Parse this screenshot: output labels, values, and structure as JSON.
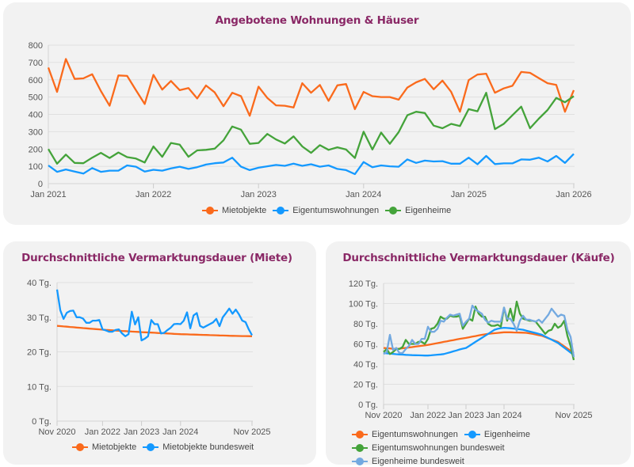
{
  "colors": {
    "title": "#8a2866",
    "orange": "#fa6a1c",
    "blue": "#1499ff",
    "green": "#44a33a",
    "lightblue": "#73a9e0"
  },
  "chart_data": [
    {
      "id": "top",
      "type": "line",
      "title": "Angebotene Wohnungen & Häuser",
      "ylim": [
        0,
        800
      ],
      "yticks": [
        0,
        100,
        200,
        300,
        400,
        500,
        600,
        700,
        800
      ],
      "ytick_labels": [
        "0",
        "100",
        "200",
        "300",
        "400",
        "500",
        "600",
        "700",
        "800"
      ],
      "xticks": [
        "2021-01",
        "2022-01",
        "2023-01",
        "2024-01",
        "2025-01",
        "2026-01"
      ],
      "xtick_labels": [
        "Jan 2021",
        "Jan 2022",
        "Jan 2023",
        "Jan 2024",
        "Jan 2025",
        "Jan 2026"
      ],
      "grid": true,
      "legend": "bottom",
      "x": [
        "2021-01",
        "2021-02",
        "2021-03",
        "2021-04",
        "2021-05",
        "2021-06",
        "2021-07",
        "2021-08",
        "2021-09",
        "2021-10",
        "2021-11",
        "2021-12",
        "2022-01",
        "2022-02",
        "2022-03",
        "2022-04",
        "2022-05",
        "2022-06",
        "2022-07",
        "2022-08",
        "2022-09",
        "2022-10",
        "2022-11",
        "2022-12",
        "2023-01",
        "2023-02",
        "2023-03",
        "2023-04",
        "2023-05",
        "2023-06",
        "2023-07",
        "2023-08",
        "2023-09",
        "2023-10",
        "2023-11",
        "2023-12",
        "2024-01",
        "2024-02",
        "2024-03",
        "2024-04",
        "2024-05",
        "2024-06",
        "2024-07",
        "2024-08",
        "2024-09",
        "2024-10",
        "2024-11",
        "2024-12",
        "2025-01",
        "2025-02",
        "2025-03",
        "2025-04",
        "2025-05",
        "2025-06",
        "2025-07",
        "2025-08",
        "2025-09",
        "2025-10",
        "2025-11",
        "2025-12",
        "2026-01"
      ],
      "series": [
        {
          "name": "Mietobjekte",
          "color": "#fa6a1c",
          "values": [
            670,
            530,
            720,
            605,
            608,
            632,
            535,
            450,
            625,
            622,
            540,
            460,
            628,
            543,
            593,
            540,
            552,
            492,
            567,
            527,
            447,
            525,
            505,
            392,
            560,
            495,
            452,
            450,
            440,
            580,
            525,
            570,
            478,
            568,
            575,
            430,
            530,
            505,
            500,
            500,
            485,
            555,
            585,
            605,
            545,
            595,
            530,
            415,
            598,
            630,
            635,
            525,
            550,
            565,
            645,
            640,
            610,
            580,
            570,
            415,
            540
          ]
        },
        {
          "name": "Eigentumswohnungen",
          "color": "#1499ff",
          "values": [
            105,
            68,
            82,
            70,
            58,
            90,
            68,
            75,
            75,
            105,
            98,
            70,
            80,
            75,
            88,
            98,
            85,
            95,
            110,
            118,
            122,
            150,
            98,
            78,
            92,
            100,
            108,
            103,
            115,
            103,
            112,
            98,
            105,
            85,
            78,
            55,
            125,
            95,
            105,
            100,
            98,
            140,
            120,
            133,
            128,
            130,
            115,
            115,
            150,
            112,
            160,
            113,
            117,
            117,
            140,
            138,
            150,
            128,
            160,
            120,
            172
          ]
        },
        {
          "name": "Eigenheime",
          "color": "#44a33a",
          "values": [
            200,
            115,
            168,
            120,
            118,
            150,
            178,
            148,
            180,
            153,
            145,
            122,
            215,
            155,
            235,
            225,
            155,
            192,
            195,
            202,
            250,
            330,
            312,
            230,
            235,
            287,
            255,
            232,
            273,
            215,
            178,
            222,
            195,
            210,
            197,
            148,
            300,
            197,
            295,
            230,
            297,
            395,
            415,
            408,
            335,
            320,
            345,
            333,
            430,
            418,
            525,
            315,
            345,
            395,
            445,
            320,
            375,
            425,
            495,
            470,
            505
          ]
        }
      ]
    },
    {
      "id": "left",
      "type": "line",
      "title": "Durchschnittliche Vermarktungsdauer (Miete)",
      "ylim": [
        0,
        40
      ],
      "yticks": [
        0,
        10,
        20,
        30,
        40
      ],
      "ytick_labels": [
        "0 Tg.",
        "10 Tg.",
        "20 Tg.",
        "30 Tg.",
        "40 Tg."
      ],
      "xticks": [
        "2020-11",
        "2022-01",
        "2023-01",
        "2024-01",
        "2025-11"
      ],
      "xtick_labels": [
        "Nov 2020",
        "Jan 2022",
        "Jan 2023",
        "Jan 2024",
        "Nov 2025"
      ],
      "grid": true,
      "legend": "bottom",
      "x": [
        "2020-11",
        "2020-12",
        "2021-01",
        "2021-02",
        "2021-03",
        "2021-04",
        "2021-05",
        "2021-06",
        "2021-07",
        "2021-08",
        "2021-09",
        "2021-10",
        "2021-11",
        "2021-12",
        "2022-01",
        "2022-02",
        "2022-03",
        "2022-04",
        "2022-05",
        "2022-06",
        "2022-07",
        "2022-08",
        "2022-09",
        "2022-10",
        "2022-11",
        "2022-12",
        "2023-01",
        "2023-02",
        "2023-03",
        "2023-04",
        "2023-05",
        "2023-06",
        "2023-07",
        "2023-08",
        "2023-09",
        "2023-10",
        "2023-11",
        "2023-12",
        "2024-01",
        "2024-02",
        "2024-03",
        "2024-04",
        "2024-05",
        "2024-06",
        "2024-07",
        "2024-08",
        "2024-09",
        "2024-10",
        "2024-11",
        "2024-12",
        "2025-01",
        "2025-02",
        "2025-03",
        "2025-04",
        "2025-05",
        "2025-06",
        "2025-07",
        "2025-08",
        "2025-09",
        "2025-10",
        "2025-11"
      ],
      "series": [
        {
          "name": "Mietobjekte",
          "color": "#fa6a1c",
          "values": [
            27.5,
            27.42,
            27.34,
            27.26,
            27.18,
            27.1,
            27.02,
            26.94,
            26.86,
            26.78,
            26.7,
            26.62,
            26.55,
            26.48,
            26.4,
            26.34,
            26.28,
            26.22,
            26.16,
            26.1,
            26.04,
            25.98,
            25.92,
            25.86,
            25.8,
            25.75,
            25.7,
            25.65,
            25.6,
            25.55,
            25.5,
            25.45,
            25.4,
            25.35,
            25.3,
            25.25,
            25.2,
            25.15,
            25.1,
            25.07,
            25.04,
            25.01,
            24.98,
            24.95,
            24.92,
            24.89,
            24.86,
            24.83,
            24.8,
            24.77,
            24.74,
            24.71,
            24.68,
            24.65,
            24.62,
            24.6,
            24.58,
            24.56,
            24.54,
            24.52,
            24.5
          ]
        },
        {
          "name": "Mietobjekte bundesweit",
          "color": "#1499ff",
          "values": [
            38,
            32,
            29.5,
            31.3,
            31.8,
            31.9,
            30,
            30,
            29.6,
            28.4,
            28.4,
            29,
            29,
            29.2,
            26.5,
            26.2,
            25.8,
            25.8,
            26.3,
            26.5,
            25.3,
            24.5,
            25.1,
            31.6,
            27.9,
            30,
            23.3,
            23.8,
            24.5,
            29.2,
            28,
            28,
            25.3,
            25.5,
            26.3,
            27,
            28,
            28.1,
            28,
            29,
            31.4,
            26.8,
            30.5,
            31.2,
            27.5,
            27,
            27.5,
            28,
            28.5,
            29.5,
            27.4,
            30,
            31.2,
            32.5,
            31,
            32.2,
            30.8,
            29,
            28.6,
            26.5,
            24.8
          ]
        }
      ]
    },
    {
      "id": "right",
      "type": "line",
      "title": "Durchschnittliche Vermarktungsdauer (Käufe)",
      "ylim": [
        0,
        120
      ],
      "yticks": [
        0,
        20,
        40,
        60,
        80,
        100,
        120
      ],
      "ytick_labels": [
        "0 Tg.",
        "20 Tg.",
        "40 Tg.",
        "60 Tg.",
        "80 Tg.",
        "100 Tg.",
        "120 Tg."
      ],
      "xticks": [
        "2020-11",
        "2022-01",
        "2023-01",
        "2024-01",
        "2025-11"
      ],
      "xtick_labels": [
        "Nov 2020",
        "Jan 2022",
        "Jan 2023",
        "Jan 2024",
        "Nov 2025"
      ],
      "grid": true,
      "legend": "bottom",
      "x": [
        "2020-11",
        "2020-12",
        "2021-01",
        "2021-02",
        "2021-03",
        "2021-04",
        "2021-05",
        "2021-06",
        "2021-07",
        "2021-08",
        "2021-09",
        "2021-10",
        "2021-11",
        "2021-12",
        "2022-01",
        "2022-02",
        "2022-03",
        "2022-04",
        "2022-05",
        "2022-06",
        "2022-07",
        "2022-08",
        "2022-09",
        "2022-10",
        "2022-11",
        "2022-12",
        "2023-01",
        "2023-02",
        "2023-03",
        "2023-04",
        "2023-05",
        "2023-06",
        "2023-07",
        "2023-08",
        "2023-09",
        "2023-10",
        "2023-11",
        "2023-12",
        "2024-01",
        "2024-02",
        "2024-03",
        "2024-04",
        "2024-05",
        "2024-06",
        "2024-07",
        "2024-08",
        "2024-09",
        "2024-10",
        "2024-11",
        "2024-12",
        "2025-01",
        "2025-02",
        "2025-03",
        "2025-04",
        "2025-05",
        "2025-06",
        "2025-07",
        "2025-08",
        "2025-09",
        "2025-10",
        "2025-11"
      ],
      "series": [
        {
          "name": "Eigentumswohnungen",
          "color": "#fa6a1c",
          "values": [
            56,
            55.8,
            55.5,
            55.2,
            55,
            55.3,
            55.7,
            56.1,
            56.5,
            56.9,
            57.3,
            57.7,
            58.1,
            58.5,
            59,
            59.6,
            60.2,
            60.8,
            61.4,
            62,
            62.6,
            63.2,
            63.8,
            64.4,
            65,
            65.5,
            66,
            66.6,
            67.2,
            67.8,
            68.4,
            69,
            69.5,
            70,
            70.3,
            70.6,
            70.9,
            71.2,
            71.5,
            71.5,
            71.5,
            71.4,
            71.3,
            71.2,
            71.1,
            71,
            70.5,
            70,
            69.3,
            68.6,
            68,
            66.8,
            65.6,
            64.4,
            63.2,
            62,
            59.8,
            57.6,
            55.4,
            53.2,
            51
          ]
        },
        {
          "name": "Eigenheime",
          "color": "#1499ff",
          "values": [
            51,
            50.7,
            50.4,
            50.1,
            49.8,
            49.6,
            49.4,
            49.2,
            49,
            48.9,
            48.8,
            48.7,
            48.6,
            48.5,
            48.5,
            48.7,
            49,
            49.3,
            49.6,
            50,
            50.8,
            51.7,
            52.6,
            53.5,
            54.5,
            55.3,
            56,
            58,
            60,
            62,
            64,
            66,
            68,
            70,
            72,
            74,
            75,
            75.6,
            76,
            75.8,
            75.5,
            75.2,
            74.8,
            74.4,
            74,
            73.2,
            72.4,
            71.6,
            70.8,
            69.9,
            69,
            67.4,
            65.8,
            64.2,
            62.6,
            61,
            58.6,
            56.2,
            53.8,
            51.4,
            49
          ]
        },
        {
          "name": "Eigentumswohnungen bundesweit",
          "color": "#44a33a",
          "values": [
            52,
            55,
            50,
            52,
            55,
            55,
            57,
            64,
            60,
            60,
            60,
            62,
            62,
            60,
            65,
            75,
            76,
            80,
            87,
            85,
            85,
            88,
            87,
            87,
            88,
            75,
            80,
            85,
            83,
            97,
            90,
            87,
            87,
            80,
            78,
            78,
            79,
            77,
            96,
            83,
            95,
            83,
            102,
            90,
            85,
            84,
            83,
            83,
            82,
            78,
            74,
            70,
            73,
            74,
            80,
            76,
            78,
            83,
            68,
            58,
            44
          ]
        },
        {
          "name": "Eigenheime bundesweit",
          "color": "#73a9e0",
          "values": [
            50,
            52,
            69,
            54,
            56,
            51,
            51,
            55,
            58,
            64,
            60,
            60,
            65,
            65,
            77,
            72,
            72,
            75,
            83,
            82,
            86,
            89,
            88,
            89,
            90,
            78,
            82,
            85,
            98,
            94,
            92,
            90,
            84,
            81,
            83,
            82,
            82,
            82,
            96,
            85,
            85,
            80,
            73,
            83,
            88,
            84,
            84,
            83,
            82,
            84,
            81,
            85,
            89,
            95,
            91,
            87,
            89,
            88,
            74,
            67,
            47
          ]
        }
      ]
    }
  ]
}
